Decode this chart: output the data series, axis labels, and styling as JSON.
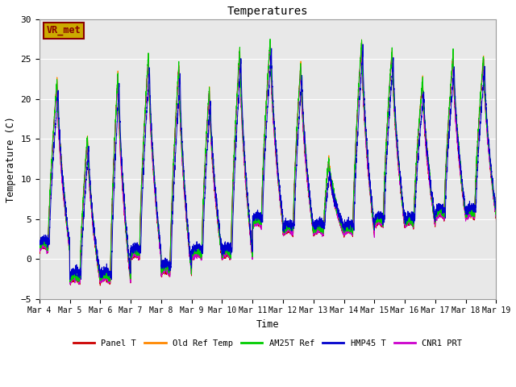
{
  "title": "Temperatures",
  "xlabel": "Time",
  "ylabel": "Temperature (C)",
  "ylim": [
    -5,
    30
  ],
  "yticks": [
    -5,
    0,
    5,
    10,
    15,
    20,
    25,
    30
  ],
  "xtick_labels": [
    "Mar 4",
    "Mar 5",
    "Mar 6",
    "Mar 7",
    "Mar 8",
    "Mar 9",
    "Mar 10",
    "Mar 11",
    "Mar 12",
    "Mar 13",
    "Mar 14",
    "Mar 15",
    "Mar 16",
    "Mar 17",
    "Mar 18",
    "Mar 19"
  ],
  "series_colors": [
    "#cc0000",
    "#ff8800",
    "#00cc00",
    "#0000cc",
    "#cc00cc"
  ],
  "series_names": [
    "Panel T",
    "Old Ref Temp",
    "AM25T Ref",
    "HMP45 T",
    "CNR1 PRT"
  ],
  "background_color": "#e8e8e8",
  "annotation_text": "VR_met",
  "annotation_bg": "#ccaa00",
  "annotation_fg": "#880000",
  "grid_color": "#ffffff",
  "n_days": 15,
  "n_points_per_day": 288,
  "day_peaks": [
    22,
    15,
    23,
    25,
    24,
    21,
    26,
    27,
    24,
    12,
    27,
    26,
    22,
    25,
    25
  ],
  "day_mins": [
    1,
    -3,
    -3,
    0,
    -2,
    0,
    0,
    4,
    3,
    3,
    3,
    4,
    4,
    5,
    5
  ],
  "night_flat_hours": [
    7,
    8,
    8,
    7,
    7,
    8,
    7,
    7,
    8,
    8,
    7,
    7,
    7,
    7,
    7
  ],
  "peak_hour": [
    14,
    14,
    14,
    14,
    14,
    14,
    14,
    14,
    14,
    12,
    14,
    14,
    14,
    14,
    14
  ]
}
